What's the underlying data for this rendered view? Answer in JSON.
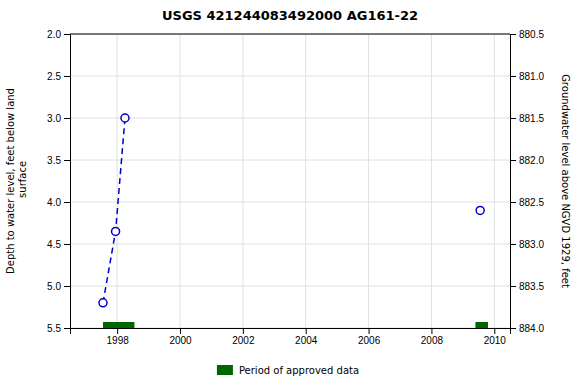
{
  "chart_data": {
    "type": "line",
    "title": "USGS 421244083492000 AG161-22",
    "y_label": "Depth to water level, feet below land\n surface",
    "y2_label": "Groundwater level above NGVD 1929, feet",
    "xlim": [
      1996.5,
      2010.5
    ],
    "xticks": [
      1998,
      2000,
      2002,
      2004,
      2006,
      2008,
      2010
    ],
    "ylim": [
      5.5,
      2.0
    ],
    "yticks": [
      {
        "value": 2.0,
        "label": "2.0"
      },
      2.5,
      {
        "value": 3.0,
        "label": "3.0"
      },
      3.5,
      {
        "value": 4.0,
        "label": "4.0"
      },
      4.5,
      {
        "value": 5.0,
        "label": "5.0"
      },
      5.5
    ],
    "y2lim": [
      884.0,
      880.5
    ],
    "y2ticks": [
      {
        "value": 884.0,
        "label": "884.0"
      },
      883.5,
      {
        "value": 883.0,
        "label": "883.0"
      },
      882.5,
      {
        "value": 882.0,
        "label": "882.0"
      },
      881.5,
      {
        "value": 881.0,
        "label": "881.0"
      },
      880.5
    ],
    "grid": true,
    "legend": "bottom",
    "series": [
      {
        "type": "line",
        "x": [
          1997.55,
          1997.95,
          1998.25
        ],
        "values": [
          5.2,
          4.35,
          3.0
        ],
        "color": "#0000cc",
        "line_style": "dashed",
        "marker": "circle"
      },
      {
        "type": "scatter",
        "x": [
          2009.55
        ],
        "values": [
          4.1
        ],
        "color": "#0000cc",
        "marker": "circle"
      },
      {
        "type": "span",
        "name": "Period of approved data",
        "color": "#006600",
        "x_start": [
          1997.55,
          2009.4
        ],
        "x_end": [
          1998.55,
          2009.8
        ]
      }
    ]
  }
}
